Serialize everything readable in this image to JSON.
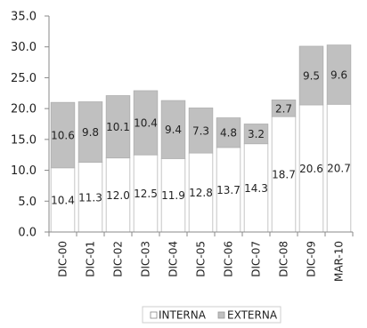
{
  "chart_data": {
    "type": "bar",
    "stacked": true,
    "categories": [
      "DIC-00",
      "DIC-01",
      "DIC-02",
      "DIC-03",
      "DIC-04",
      "DIC-05",
      "DIC-06",
      "DIC-07",
      "DIC-08",
      "DIC-09",
      "MAR-10"
    ],
    "series": [
      {
        "name": "INTERNA",
        "values": [
          10.4,
          11.3,
          12.0,
          12.5,
          11.9,
          12.8,
          13.7,
          14.3,
          18.7,
          20.6,
          20.7
        ],
        "labels": [
          "10.4",
          "11.3",
          "12.0",
          "12.5",
          "11.9",
          "12.8",
          "13.7",
          "14.3",
          "18.7",
          "20.6",
          "20.7"
        ],
        "color": "#ffffff"
      },
      {
        "name": "EXTERNA",
        "values": [
          10.6,
          9.8,
          10.1,
          10.4,
          9.4,
          7.3,
          4.8,
          3.2,
          2.7,
          9.5,
          9.6
        ],
        "labels": [
          "10.6",
          "9.8",
          "10.1",
          "10.4",
          "9.4",
          "7.3",
          "4.8",
          "3.2",
          "2.7",
          "9.5",
          "9.6"
        ],
        "color": "#c0c0c0"
      }
    ],
    "ylim": [
      0,
      35
    ],
    "yticks": [
      "0.0",
      "5.0",
      "10.0",
      "15.0",
      "20.0",
      "25.0",
      "30.0",
      "35.0"
    ],
    "ytick_values": [
      0,
      5,
      10,
      15,
      20,
      25,
      30,
      35
    ],
    "grid": false,
    "legend": "bottom",
    "title": "",
    "xlabel": "",
    "ylabel": ""
  }
}
